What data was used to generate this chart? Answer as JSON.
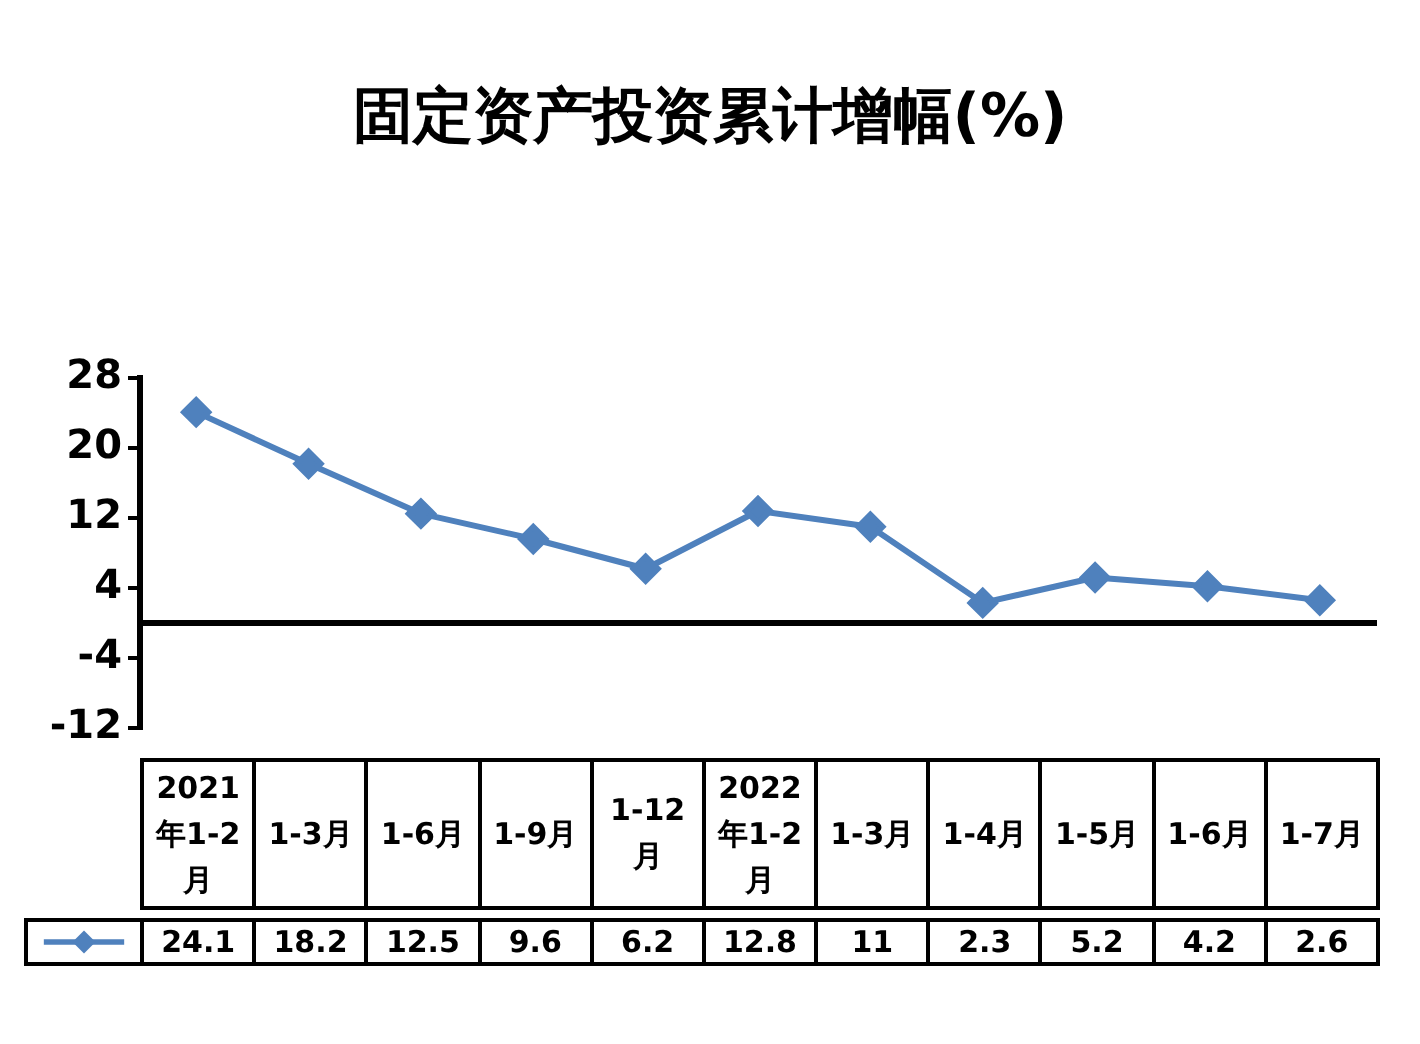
{
  "chart_data": {
    "type": "line",
    "title": "固定资产投资累计增幅(%)",
    "categories": [
      "2021年1-2月",
      "1-3月",
      "1-6月",
      "1-9月",
      "1-12月",
      "2022年1-2月",
      "1-3月",
      "1-4月",
      "1-5月",
      "1-6月",
      "1-7月"
    ],
    "series": [
      {
        "color": "#4f81bd",
        "values": [
          24.1,
          18.2,
          12.5,
          9.6,
          6.2,
          12.8,
          11,
          2.3,
          5.2,
          4.2,
          2.6
        ]
      }
    ],
    "ylim": [
      -12,
      28
    ],
    "yticks": [
      -12,
      -4,
      4,
      12,
      20,
      28
    ],
    "grid": false,
    "legend": false,
    "marker": "diamond",
    "line_style": "solid",
    "data_labels": true
  }
}
